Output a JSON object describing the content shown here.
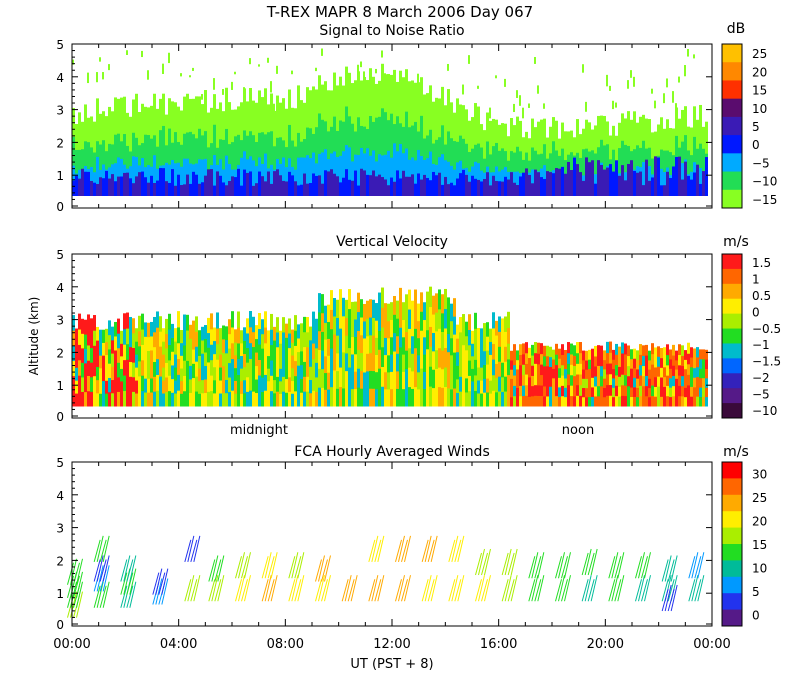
{
  "header": {
    "title": "T-REX  MAPR  8 March 2006 Day 067",
    "subtitle": "Signal to Noise Ratio"
  },
  "chart_data": [
    {
      "id": "snr",
      "type": "heatmap",
      "title": "Signal to Noise Ratio",
      "ylabel": "",
      "ylim": [
        0,
        5
      ],
      "yticks": [
        "0",
        "1",
        "2",
        "3",
        "4",
        "5"
      ],
      "colorbar_unit": "dB",
      "colorbar_labels": [
        "25",
        "20",
        "15",
        "10",
        "5",
        "0",
        "−5",
        "−10",
        "−15"
      ],
      "colorbar_colors": [
        "#ffc000",
        "#ff8800",
        "#ff3000",
        "#5a0c6e",
        "#3a1bb5",
        "#0018ff",
        "#00aaff",
        "#22dd55",
        "#88ff22"
      ]
    },
    {
      "id": "vv",
      "type": "heatmap",
      "title": "Vertical Velocity",
      "ylabel": "Altitude (km)",
      "ylim": [
        0,
        5
      ],
      "yticks": [
        "0",
        "1",
        "2",
        "3",
        "4",
        "5"
      ],
      "xmarkers": [
        "midnight",
        "noon"
      ],
      "colorbar_unit": "m/s",
      "colorbar_labels": [
        "1.5",
        "1",
        "0.5",
        "0",
        "−0.5",
        "−1",
        "−1.5",
        "−2",
        "−5",
        "−10"
      ],
      "colorbar_colors": [
        "#ff1a1a",
        "#ff6600",
        "#ffaa00",
        "#ffee00",
        "#aaee00",
        "#22dd22",
        "#00bbcc",
        "#0066ff",
        "#3322bb",
        "#551a88",
        "#3a0a3a"
      ]
    },
    {
      "id": "winds",
      "type": "scatter",
      "title": "FCA Hourly Averaged Winds",
      "ylabel": "",
      "ylim": [
        0,
        5
      ],
      "xlim": [
        0,
        24
      ],
      "yticks": [
        "0",
        "1",
        "2",
        "3",
        "4",
        "5"
      ],
      "xticks": [
        "00:00",
        "04:00",
        "08:00",
        "12:00",
        "16:00",
        "20:00",
        "00:00"
      ],
      "xlabel": "UT  (PST + 8)",
      "colorbar_unit": "m/s",
      "colorbar_labels": [
        "30",
        "25",
        "20",
        "15",
        "10",
        "5",
        "0"
      ],
      "colorbar_colors": [
        "#ff0000",
        "#ff6600",
        "#ffaa00",
        "#ffee00",
        "#aaee00",
        "#22dd22",
        "#00bb99",
        "#0099ff",
        "#2233ee",
        "#551a88"
      ],
      "vanes": [
        {
          "t": 0.0,
          "alt": 0.5,
          "speed": 16
        },
        {
          "t": 0.0,
          "alt": 0.8,
          "speed": 15
        },
        {
          "t": 0.0,
          "alt": 1.1,
          "speed": 14
        },
        {
          "t": 0.0,
          "alt": 1.5,
          "speed": 13
        },
        {
          "t": 1.0,
          "alt": 0.8,
          "speed": 15
        },
        {
          "t": 1.0,
          "alt": 1.3,
          "speed": 8
        },
        {
          "t": 1.0,
          "alt": 1.6,
          "speed": 4
        },
        {
          "t": 1.0,
          "alt": 2.2,
          "speed": 12
        },
        {
          "t": 2.0,
          "alt": 0.8,
          "speed": 10
        },
        {
          "t": 2.0,
          "alt": 1.2,
          "speed": 12
        },
        {
          "t": 2.0,
          "alt": 1.6,
          "speed": 9
        },
        {
          "t": 3.2,
          "alt": 0.9,
          "speed": 6
        },
        {
          "t": 3.2,
          "alt": 1.2,
          "speed": 5
        },
        {
          "t": 4.4,
          "alt": 1.0,
          "speed": 16
        },
        {
          "t": 4.4,
          "alt": 2.2,
          "speed": 3
        },
        {
          "t": 5.3,
          "alt": 1.0,
          "speed": 16
        },
        {
          "t": 5.3,
          "alt": 1.6,
          "speed": 12
        },
        {
          "t": 6.3,
          "alt": 1.0,
          "speed": 19
        },
        {
          "t": 6.3,
          "alt": 1.7,
          "speed": 18
        },
        {
          "t": 7.3,
          "alt": 1.0,
          "speed": 22
        },
        {
          "t": 7.3,
          "alt": 1.7,
          "speed": 21
        },
        {
          "t": 8.3,
          "alt": 1.0,
          "speed": 20
        },
        {
          "t": 8.3,
          "alt": 1.7,
          "speed": 18
        },
        {
          "t": 9.3,
          "alt": 1.0,
          "speed": 20
        },
        {
          "t": 9.3,
          "alt": 1.6,
          "speed": 22
        },
        {
          "t": 10.3,
          "alt": 1.0,
          "speed": 22
        },
        {
          "t": 11.3,
          "alt": 1.0,
          "speed": 22
        },
        {
          "t": 11.3,
          "alt": 2.2,
          "speed": 21
        },
        {
          "t": 12.3,
          "alt": 1.0,
          "speed": 22
        },
        {
          "t": 12.3,
          "alt": 2.2,
          "speed": 22
        },
        {
          "t": 13.3,
          "alt": 1.0,
          "speed": 21
        },
        {
          "t": 13.3,
          "alt": 2.2,
          "speed": 22
        },
        {
          "t": 14.3,
          "alt": 1.0,
          "speed": 20
        },
        {
          "t": 14.3,
          "alt": 2.2,
          "speed": 21
        },
        {
          "t": 15.3,
          "alt": 1.0,
          "speed": 19
        },
        {
          "t": 15.3,
          "alt": 1.8,
          "speed": 18
        },
        {
          "t": 16.3,
          "alt": 1.0,
          "speed": 17
        },
        {
          "t": 16.3,
          "alt": 1.8,
          "speed": 16
        },
        {
          "t": 17.3,
          "alt": 1.0,
          "speed": 14
        },
        {
          "t": 17.3,
          "alt": 1.7,
          "speed": 15
        },
        {
          "t": 18.3,
          "alt": 1.0,
          "speed": 12
        },
        {
          "t": 18.3,
          "alt": 1.7,
          "speed": 14
        },
        {
          "t": 19.3,
          "alt": 1.0,
          "speed": 11
        },
        {
          "t": 19.3,
          "alt": 1.8,
          "speed": 12
        },
        {
          "t": 20.3,
          "alt": 1.0,
          "speed": 12
        },
        {
          "t": 20.3,
          "alt": 1.7,
          "speed": 13
        },
        {
          "t": 21.3,
          "alt": 1.0,
          "speed": 11
        },
        {
          "t": 21.3,
          "alt": 1.7,
          "speed": 12
        },
        {
          "t": 22.3,
          "alt": 1.0,
          "speed": 9
        },
        {
          "t": 22.3,
          "alt": 1.6,
          "speed": 10
        },
        {
          "t": 22.3,
          "alt": 0.7,
          "speed": 4
        },
        {
          "t": 23.3,
          "alt": 1.0,
          "speed": 9
        },
        {
          "t": 23.3,
          "alt": 1.7,
          "speed": 8
        }
      ]
    }
  ]
}
